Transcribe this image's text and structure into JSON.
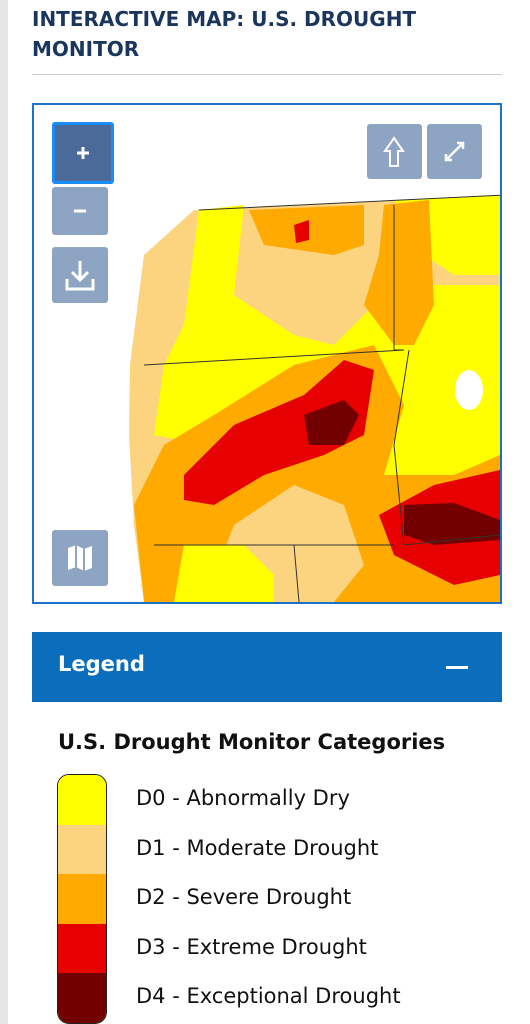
{
  "header": {
    "title": "INTERACTIVE MAP: U.S. DROUGHT MONITOR"
  },
  "legend": {
    "title": "Legend",
    "heading": "U.S. Drought Monitor Categories",
    "items": [
      {
        "label": "D0 - Abnormally Dry",
        "color": "#ffff00"
      },
      {
        "label": "D1 - Moderate Drought",
        "color": "#fcd37f"
      },
      {
        "label": "D2 - Severe Drought",
        "color": "#ffaa00"
      },
      {
        "label": "D3 - Extreme Drought",
        "color": "#e60000"
      },
      {
        "label": "D4 - Exceptional Drought",
        "color": "#730000"
      }
    ]
  }
}
